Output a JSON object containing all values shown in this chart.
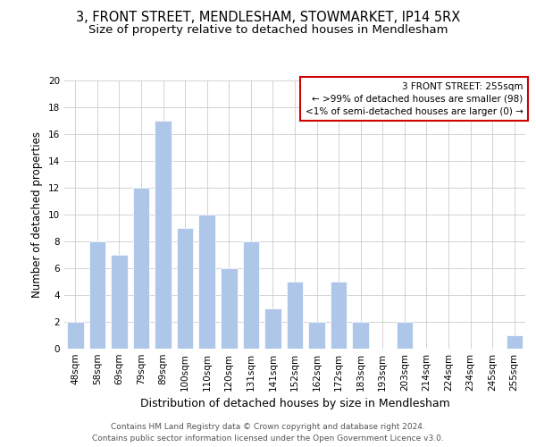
{
  "title": "3, FRONT STREET, MENDLESHAM, STOWMARKET, IP14 5RX",
  "subtitle": "Size of property relative to detached houses in Mendlesham",
  "xlabel": "Distribution of detached houses by size in Mendlesham",
  "ylabel": "Number of detached properties",
  "categories": [
    "48sqm",
    "58sqm",
    "69sqm",
    "79sqm",
    "89sqm",
    "100sqm",
    "110sqm",
    "120sqm",
    "131sqm",
    "141sqm",
    "152sqm",
    "162sqm",
    "172sqm",
    "183sqm",
    "193sqm",
    "203sqm",
    "214sqm",
    "224sqm",
    "234sqm",
    "245sqm",
    "255sqm"
  ],
  "values": [
    2,
    8,
    7,
    12,
    17,
    9,
    10,
    6,
    8,
    3,
    5,
    2,
    5,
    2,
    0,
    2,
    0,
    0,
    0,
    0,
    1
  ],
  "bar_color": "#aec6e8",
  "ylim": [
    0,
    20
  ],
  "yticks": [
    0,
    2,
    4,
    6,
    8,
    10,
    12,
    14,
    16,
    18,
    20
  ],
  "grid_color": "#cccccc",
  "background_color": "#ffffff",
  "annotation_title": "3 FRONT STREET: 255sqm",
  "annotation_line1": "← >99% of detached houses are smaller (98)",
  "annotation_line2": "<1% of semi-detached houses are larger (0) →",
  "annotation_box_edge_color": "#cc0000",
  "footer_line1": "Contains HM Land Registry data © Crown copyright and database right 2024.",
  "footer_line2": "Contains public sector information licensed under the Open Government Licence v3.0.",
  "title_fontsize": 10.5,
  "subtitle_fontsize": 9.5,
  "xlabel_fontsize": 9,
  "ylabel_fontsize": 8.5,
  "tick_fontsize": 7.5,
  "annotation_fontsize": 7.5,
  "footer_fontsize": 6.5
}
